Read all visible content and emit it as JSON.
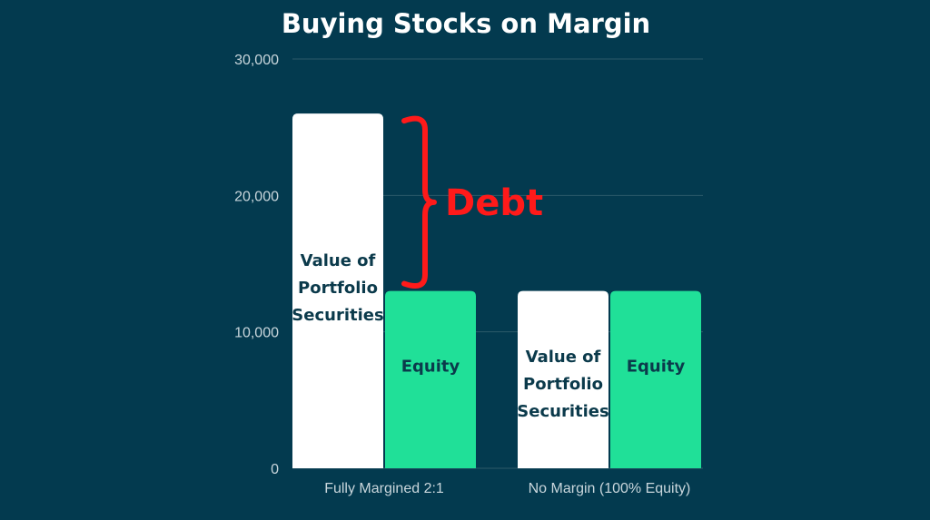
{
  "chart_data": {
    "type": "bar",
    "title": "Buying Stocks on Margin",
    "xlabel": "",
    "ylabel": "",
    "ylim": [
      0,
      30000
    ],
    "yticks": [
      "0",
      "10,000",
      "20,000",
      "30,000"
    ],
    "grid": true,
    "categories": [
      "Fully Margined 2:1",
      "No Margin (100% Equity)"
    ],
    "series": [
      {
        "values": [
          26000,
          13000
        ],
        "color": "#ffffff",
        "label_color": "#0b3a4b",
        "label": "Value of Portfolio Securities",
        "label_lines": [
          "Value of",
          "Portfolio",
          "Securities"
        ]
      },
      {
        "values": [
          13000,
          13000
        ],
        "color": "#20e098",
        "label_color": "#0b3a4b",
        "label": "Equity",
        "label_lines": [
          "Equity"
        ]
      }
    ],
    "annotations": [
      {
        "text": "Debt",
        "color": "#ff1a1a",
        "category": "Fully Margined 2:1",
        "from": 13000,
        "to": 26000
      }
    ]
  },
  "colors": {
    "background": "#033a4f",
    "grid": "#2c5a6a",
    "axis_text": "#c9d6dc"
  }
}
